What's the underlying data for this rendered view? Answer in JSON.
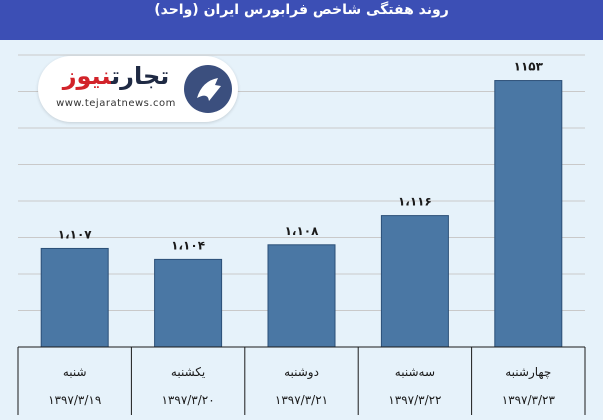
{
  "title": "روند هفتگی شاخص فرابورس ایران (واحد)",
  "logo": {
    "brand_a": "تجارت",
    "brand_b": "نیوز",
    "url": "www.tejaratnews.com"
  },
  "colors": {
    "bar": "#4a77a4",
    "bar_edge": "#2b4f77",
    "header": "#3c4fb5",
    "background": "#e6f2fa",
    "brand_red": "#d2232a"
  },
  "chart_data": {
    "type": "bar",
    "title": "روند هفتگی شاخص فرابورس ایران (واحد)",
    "categories": [
      "شنبه",
      "یکشنبه",
      "دوشنبه",
      "سه‌شنبه",
      "چهارشنبه"
    ],
    "dates": [
      "۱۳۹۷/۳/۱۹",
      "۱۳۹۷/۳/۲۰",
      "۱۳۹۷/۳/۲۱",
      "۱۳۹۷/۳/۲۲",
      "۱۳۹۷/۳/۲۳"
    ],
    "values": [
      1107,
      1104,
      1108,
      1116,
      1153
    ],
    "value_labels": [
      "۱،۱۰۷",
      "۱،۱۰۴",
      "۱،۱۰۸",
      "۱،۱۱۶",
      "۱۱۵۳"
    ],
    "xlabel": "",
    "ylabel": "",
    "ylim": [
      1080,
      1160
    ],
    "grid": true,
    "legend": "none"
  }
}
